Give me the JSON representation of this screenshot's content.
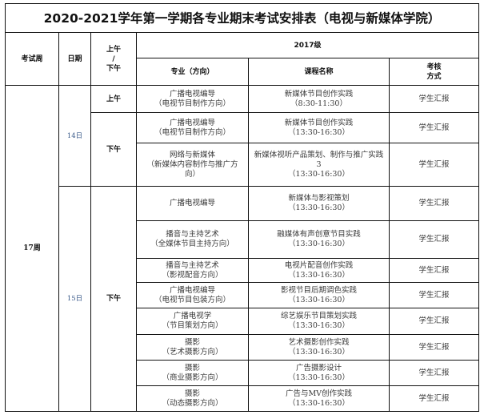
{
  "title": "2020-2021学年第一学期各专业期末考试安排表（电视与新媒体学院）",
  "headers": {
    "week": "考试周",
    "date": "日期",
    "ampm": [
      "上午",
      "/",
      "下午"
    ],
    "grade": "2017级",
    "major": "专业（方向）",
    "course": "课程名称",
    "method": [
      "考核",
      "方式"
    ]
  },
  "week": "17周",
  "days": [
    "14日",
    "15日"
  ],
  "ampm_labels": {
    "am": "上午",
    "pm": "下午"
  },
  "rows": [
    {
      "major": [
        "广播电视编导",
        "（电视节目制作方向）"
      ],
      "course": [
        "新媒体节目创作实践",
        "（8:30-11:30）"
      ],
      "method": "学生汇报"
    },
    {
      "major": [
        "广播电视编导",
        "（电视节目制作方向）"
      ],
      "course": [
        "新媒体节目创作实践",
        "（13:30-16:30）"
      ],
      "method": "学生汇报"
    },
    {
      "major": [
        "网络与新媒体",
        "（新媒体内容制作与推广方",
        "向）"
      ],
      "course": [
        "新媒体视听产品策划、制作与推广实践",
        "3",
        "（13:30-16:30）"
      ],
      "method": "学生汇报"
    },
    {
      "major": [
        "广播电视编导"
      ],
      "course": [
        "新媒体与影视策划",
        "（13:30-16:30）"
      ],
      "method": "学生汇报"
    },
    {
      "major": [
        "播音与主持艺术",
        "（全媒体节目主持方向）"
      ],
      "course": [
        "融媒体有声创意节目实践",
        "（13:30-16:30）"
      ],
      "method": "学生汇报"
    },
    {
      "major": [
        "播音与主持艺术",
        "（影视配音方向）"
      ],
      "course": [
        "电视片配音创作实践",
        "（13:30-16:30）"
      ],
      "method": "学生汇报"
    },
    {
      "major": [
        "广播电视编导",
        "（电视节目包装方向）"
      ],
      "course": [
        "影视节目后期调色实践",
        "（13:30-16:30）"
      ],
      "method": "学生汇报"
    },
    {
      "major": [
        "广播电视学",
        "（节目策划方向）"
      ],
      "course": [
        "综艺娱乐节目策划实践",
        "（13:30-16:30）"
      ],
      "method": "学生汇报"
    },
    {
      "major": [
        "摄影",
        "（艺术摄影方向）"
      ],
      "course": [
        "艺术摄影创作实践",
        "（13:30-16:30）"
      ],
      "method": "学生汇报"
    },
    {
      "major": [
        "摄影",
        "（商业摄影方向）"
      ],
      "course": [
        "广告摄影设计",
        "（13:30-16:30）"
      ],
      "method": "学生汇报"
    },
    {
      "major": [
        "摄影",
        "（动态摄影方向）"
      ],
      "course": [
        "广告与MV创作实践",
        "（13:30-16:30）"
      ],
      "method": "学生汇报"
    }
  ]
}
